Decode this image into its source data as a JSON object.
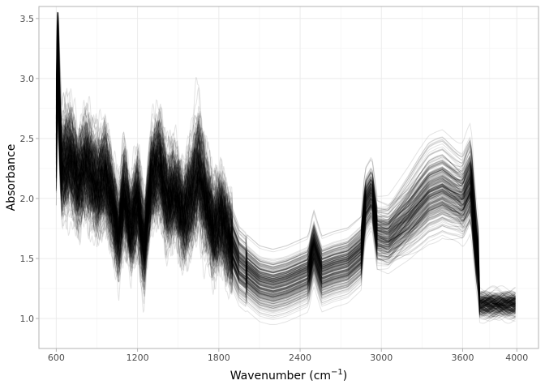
{
  "chart_data": {
    "type": "line",
    "title": "",
    "xlabel": "Wavenumber (cm",
    "xlabel_superscript": "−1",
    "xlabel_suffix": ")",
    "ylabel": "Absorbance",
    "xlim": [
      472,
      4160
    ],
    "ylim": [
      0.75,
      3.6
    ],
    "x_ticks": [
      600,
      1200,
      1800,
      2400,
      3000,
      3600,
      4000
    ],
    "x_tick_labels": [
      "600",
      "1200",
      "1800",
      "2400",
      "3000",
      "3600",
      "4000"
    ],
    "y_ticks": [
      1.0,
      1.5,
      2.0,
      2.5,
      3.0,
      3.5
    ],
    "y_tick_labels": [
      "1.0",
      "1.5",
      "2.0",
      "2.5",
      "3.0",
      "3.5"
    ],
    "grid": true,
    "legend": "none",
    "line_color": "#000000",
    "series_count": 300,
    "series_description_units": "absorbance",
    "representative_profile": {
      "x": [
        600,
        610,
        640,
        700,
        760,
        820,
        900,
        960,
        1000,
        1060,
        1100,
        1150,
        1200,
        1250,
        1300,
        1360,
        1420,
        1480,
        1540,
        1600,
        1650,
        1700,
        1760,
        1820,
        1880,
        1950,
        2000,
        2100,
        2200,
        2300,
        2400,
        2460,
        2500,
        2560,
        2650,
        2750,
        2850,
        2880,
        2930,
        2970,
        3050,
        3200,
        3350,
        3450,
        3520,
        3600,
        3660,
        3700,
        3750,
        3850,
        4000
      ],
      "y": [
        2.3,
        2.95,
        2.25,
        2.35,
        2.15,
        2.3,
        2.1,
        2.2,
        2.05,
        1.7,
        2.1,
        1.75,
        2.0,
        1.65,
        2.15,
        2.3,
        2.0,
        2.05,
        1.85,
        2.05,
        2.25,
        2.0,
        1.75,
        1.85,
        1.65,
        1.45,
        1.4,
        1.3,
        1.27,
        1.3,
        1.35,
        1.38,
        1.6,
        1.38,
        1.42,
        1.45,
        1.55,
        1.95,
        2.05,
        1.7,
        1.68,
        1.85,
        2.05,
        2.1,
        2.05,
        2.0,
        2.15,
        1.6,
        1.15,
        1.13,
        1.15
      ]
    }
  }
}
